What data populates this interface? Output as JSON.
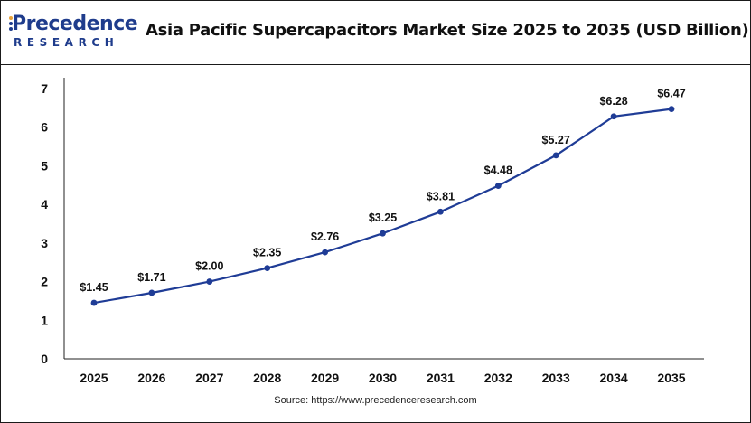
{
  "header": {
    "logo_text": "Precedence",
    "logo_subtext": "RESEARCH"
  },
  "chart_data": {
    "type": "line",
    "title": "Asia Pacific Supercapacitors Market Size 2025 to 2035 (USD Billion)",
    "xlabel": "",
    "ylabel": "",
    "categories": [
      "2025",
      "2026",
      "2027",
      "2028",
      "2029",
      "2030",
      "2031",
      "2032",
      "2033",
      "2034",
      "2035"
    ],
    "series": [
      {
        "values": [
          1.45,
          1.71,
          2.0,
          2.35,
          2.76,
          3.25,
          3.81,
          4.48,
          5.27,
          6.28,
          6.47
        ],
        "labels": [
          "$1.45",
          "$1.71",
          "$2.00",
          "$2.35",
          "$2.76",
          "$3.25",
          "$3.81",
          "$4.48",
          "$5.27",
          "$6.28",
          "$6.47"
        ],
        "color": "#1f3c96"
      }
    ],
    "ylim": [
      0,
      7
    ],
    "yticks": [
      "0",
      "1",
      "2",
      "3",
      "4",
      "5",
      "6",
      "7"
    ],
    "grid": false
  },
  "footer": {
    "source": "Source: https://www.precedenceresearch.com"
  }
}
